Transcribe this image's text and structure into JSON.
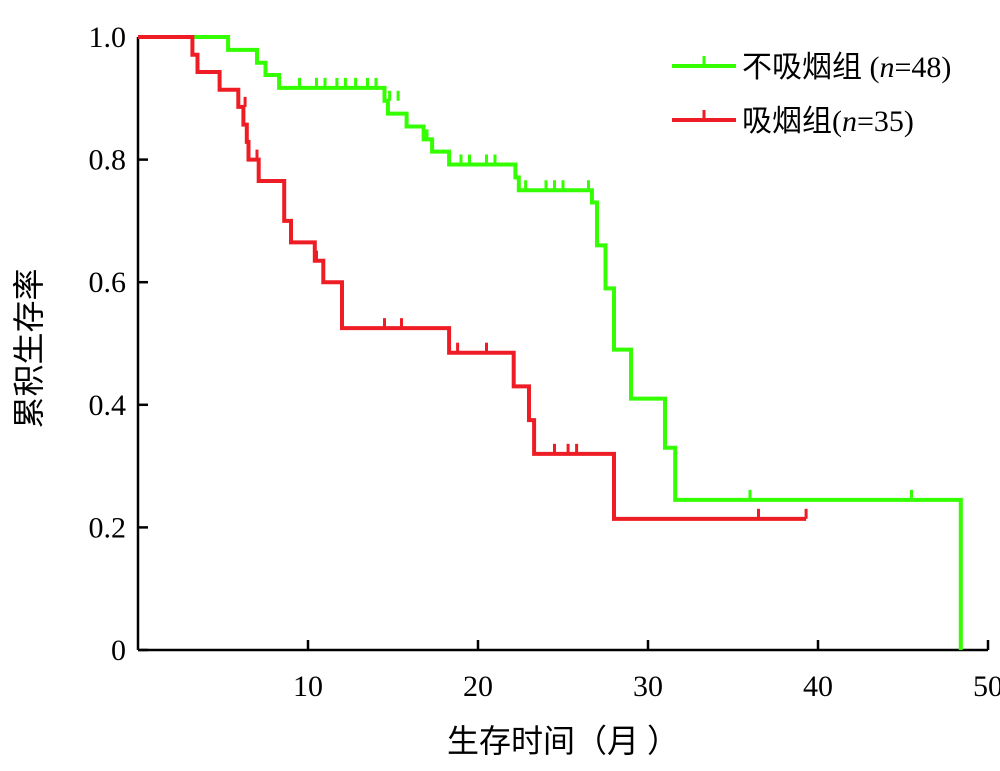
{
  "chart_data": {
    "type": "line",
    "xlabel": "生存时间（月 ）",
    "ylabel": "累积生存率",
    "xlim": [
      0,
      50
    ],
    "ylim": [
      0,
      1.0
    ],
    "x_ticks": [
      10,
      20,
      30,
      40,
      50
    ],
    "y_ticks": [
      0,
      0.2,
      0.4,
      0.6,
      0.8,
      1.0
    ],
    "y_tick_labels": [
      "0",
      "0.2",
      "0.4",
      "0.6",
      "0.8",
      "1.0"
    ],
    "grid": false,
    "legend_position": "top-right",
    "series": [
      {
        "name": "不吸烟组 (n=48)",
        "name_parts": [
          "不吸烟组 (",
          "n",
          "=48)"
        ],
        "color": "#33ff00",
        "steps": [
          [
            0,
            1.0
          ],
          [
            5.3,
            0.979
          ],
          [
            7.0,
            0.958
          ],
          [
            7.5,
            0.938
          ],
          [
            8.3,
            0.917
          ],
          [
            14.5,
            0.896
          ],
          [
            14.7,
            0.875
          ],
          [
            15.8,
            0.854
          ],
          [
            16.8,
            0.833
          ],
          [
            17.3,
            0.813
          ],
          [
            18.3,
            0.792
          ],
          [
            22.2,
            0.771
          ],
          [
            22.4,
            0.75
          ],
          [
            26.7,
            0.73
          ],
          [
            27.0,
            0.66
          ],
          [
            27.5,
            0.59
          ],
          [
            28.0,
            0.49
          ],
          [
            29.0,
            0.41
          ],
          [
            31.0,
            0.33
          ],
          [
            31.6,
            0.245
          ],
          [
            48.4,
            0.0
          ]
        ],
        "end_x": 48.4,
        "censored": [
          [
            9.5,
            0.917
          ],
          [
            10.5,
            0.917
          ],
          [
            11.0,
            0.917
          ],
          [
            11.7,
            0.917
          ],
          [
            12.2,
            0.917
          ],
          [
            12.8,
            0.917
          ],
          [
            13.5,
            0.917
          ],
          [
            14.0,
            0.917
          ],
          [
            14.8,
            0.896
          ],
          [
            15.3,
            0.896
          ],
          [
            17.0,
            0.833
          ],
          [
            19.0,
            0.792
          ],
          [
            19.5,
            0.792
          ],
          [
            20.5,
            0.792
          ],
          [
            21.0,
            0.792
          ],
          [
            22.8,
            0.75
          ],
          [
            24.0,
            0.75
          ],
          [
            24.5,
            0.75
          ],
          [
            25.0,
            0.75
          ],
          [
            26.5,
            0.75
          ],
          [
            36.0,
            0.245
          ],
          [
            45.5,
            0.245
          ]
        ]
      },
      {
        "name": "吸烟组(n=35)",
        "name_parts": [
          "吸烟组(",
          "n",
          "=35)"
        ],
        "color": "#ee1c24",
        "steps": [
          [
            0,
            1.0
          ],
          [
            3.2,
            0.971
          ],
          [
            3.5,
            0.943
          ],
          [
            4.8,
            0.914
          ],
          [
            5.9,
            0.886
          ],
          [
            6.2,
            0.857
          ],
          [
            6.4,
            0.829
          ],
          [
            6.5,
            0.8
          ],
          [
            7.1,
            0.765
          ],
          [
            8.6,
            0.7
          ],
          [
            9.0,
            0.665
          ],
          [
            10.4,
            0.635
          ],
          [
            10.9,
            0.6
          ],
          [
            12.0,
            0.525
          ],
          [
            18.3,
            0.485
          ],
          [
            22.1,
            0.43
          ],
          [
            23.0,
            0.375
          ],
          [
            23.3,
            0.32
          ],
          [
            28.0,
            0.214
          ]
        ],
        "end_x": 39.3,
        "censored": [
          [
            6.3,
            0.886
          ],
          [
            7.0,
            0.8
          ],
          [
            10.5,
            0.635
          ],
          [
            14.5,
            0.525
          ],
          [
            15.5,
            0.525
          ],
          [
            18.8,
            0.485
          ],
          [
            20.5,
            0.485
          ],
          [
            24.5,
            0.32
          ],
          [
            25.3,
            0.32
          ],
          [
            25.8,
            0.32
          ],
          [
            36.5,
            0.214
          ],
          [
            39.3,
            0.214
          ]
        ]
      }
    ]
  }
}
